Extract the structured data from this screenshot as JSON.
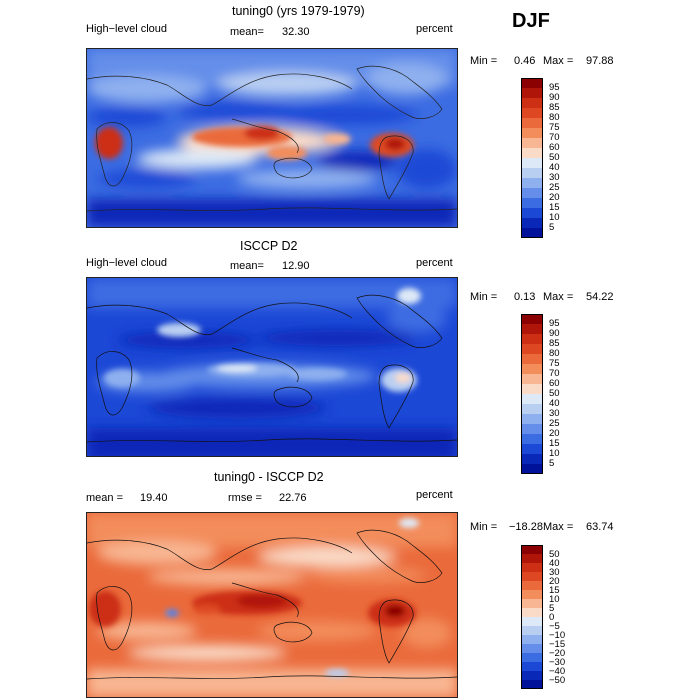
{
  "season": "DJF",
  "panels": [
    {
      "title": "tuning0 (yrs 1979-1979)",
      "left_label": "High−level cloud",
      "mean_label": "mean=",
      "mean_value": "32.30",
      "units": "percent",
      "min_label": "Min =",
      "min_value": "0.46",
      "max_label": "Max =",
      "max_value": "97.88",
      "colorbar_labels": [
        "95",
        "90",
        "85",
        "80",
        "75",
        "70",
        "60",
        "50",
        "40",
        "30",
        "25",
        "20",
        "15",
        "10",
        "5"
      ],
      "colorbar_colors": [
        "#8b0000",
        "#b0150a",
        "#cc2f14",
        "#dd4822",
        "#ea6a3b",
        "#f38d5c",
        "#f8b692",
        "#fadbc8",
        "#dde9f6",
        "#b9cff2",
        "#8fb0ef",
        "#648ee9",
        "#3c6ce2",
        "#1c48d6",
        "#0a28b8",
        "#01129a"
      ]
    },
    {
      "title": "ISCCP D2",
      "left_label": "High−level cloud",
      "mean_label": "mean=",
      "mean_value": "12.90",
      "units": "percent",
      "min_label": "Min =",
      "min_value": "0.13",
      "max_label": "Max =",
      "max_value": "54.22",
      "colorbar_labels": [
        "95",
        "90",
        "85",
        "80",
        "75",
        "70",
        "60",
        "50",
        "40",
        "30",
        "25",
        "20",
        "15",
        "10",
        "5"
      ],
      "colorbar_colors": [
        "#8b0000",
        "#b0150a",
        "#cc2f14",
        "#dd4822",
        "#ea6a3b",
        "#f38d5c",
        "#f8b692",
        "#fadbc8",
        "#dde9f6",
        "#b9cff2",
        "#8fb0ef",
        "#648ee9",
        "#3c6ce2",
        "#1c48d6",
        "#0a28b8",
        "#01129a"
      ]
    },
    {
      "title": "tuning0 - ISCCP D2",
      "left_label": "mean =",
      "mean_label": "",
      "mean_value": "19.40",
      "rmse_label": "rmse =",
      "rmse_value": "22.76",
      "units": "percent",
      "min_label": "Min =",
      "min_value": "−18.28",
      "max_label": "Max =",
      "max_value": "63.74",
      "colorbar_labels": [
        "50",
        "40",
        "30",
        "20",
        "15",
        "10",
        "5",
        "0",
        "−5",
        "−10",
        "−15",
        "−20",
        "−30",
        "−40",
        "−50"
      ],
      "colorbar_colors": [
        "#8b0000",
        "#b0150a",
        "#cc2f14",
        "#dd4822",
        "#ea6a3b",
        "#f38d5c",
        "#f8b692",
        "#fadbc8",
        "#dde9f6",
        "#b9cff2",
        "#8fb0ef",
        "#648ee9",
        "#3c6ce2",
        "#1c48d6",
        "#0a28b8",
        "#01129a"
      ]
    }
  ]
}
